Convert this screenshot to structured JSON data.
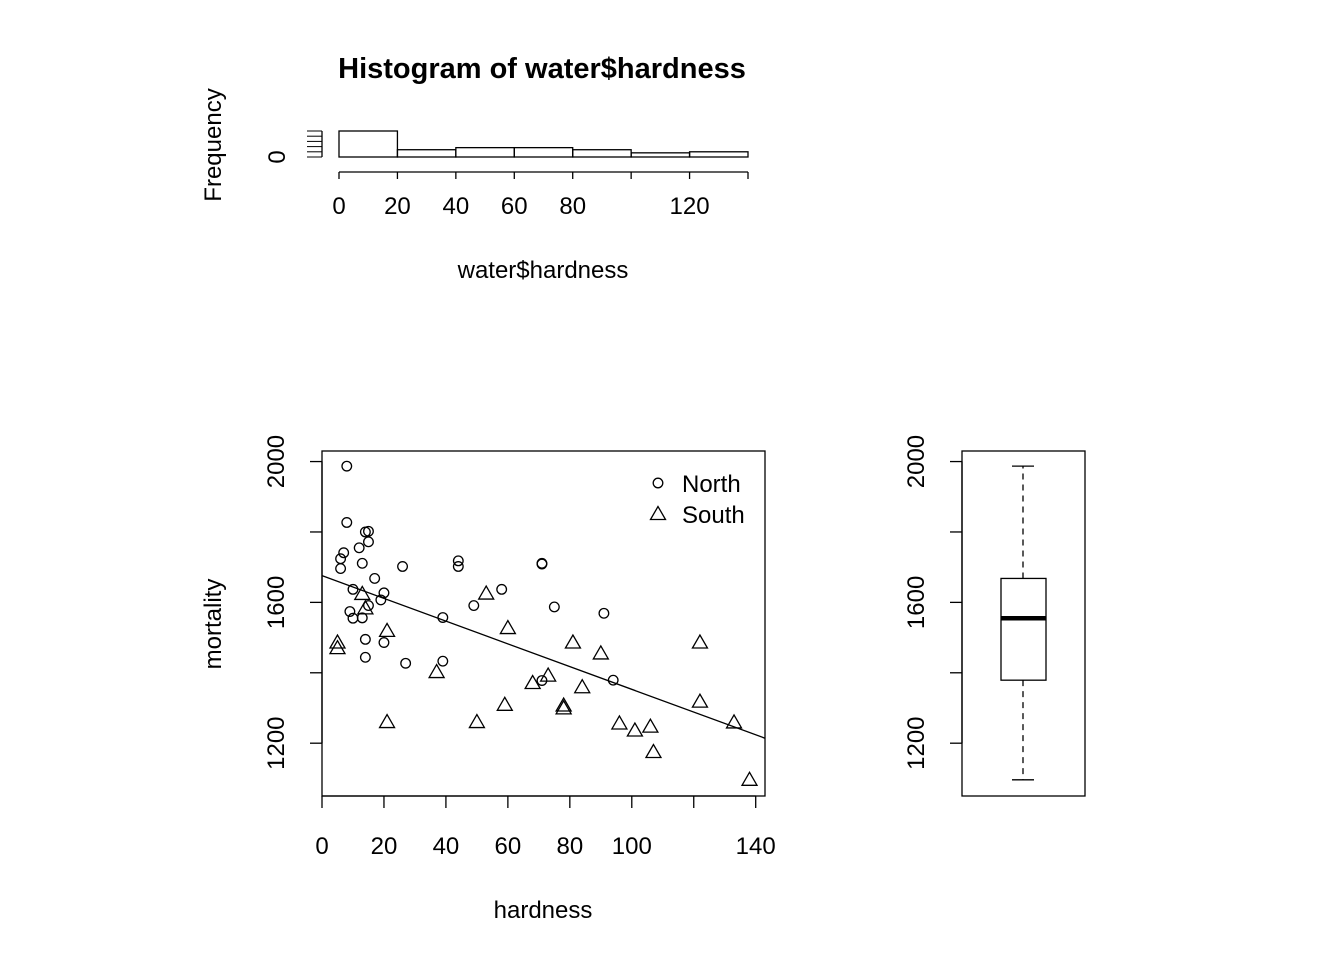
{
  "chart_data": [
    {
      "type": "bar",
      "title": "Histogram of water$hardness",
      "xlabel": "water$hardness",
      "ylabel": "Frequency",
      "x_ticks": [
        "0",
        "20",
        "40",
        "60",
        "80",
        "120"
      ],
      "x_tick_values": [
        0,
        20,
        40,
        60,
        80,
        120
      ],
      "y_ticks": [
        "0"
      ],
      "bins": [
        [
          0,
          20
        ],
        [
          20,
          40
        ],
        [
          40,
          60
        ],
        [
          60,
          80
        ],
        [
          80,
          100
        ],
        [
          100,
          120
        ],
        [
          120,
          140
        ]
      ],
      "values": [
        25,
        7,
        9,
        9,
        7,
        4,
        5
      ],
      "xlim": [
        0,
        140
      ],
      "ylim": [
        0,
        25
      ]
    },
    {
      "type": "scatter",
      "xlabel": "hardness",
      "ylabel": "mortality",
      "x_ticks": [
        "0",
        "20",
        "40",
        "60",
        "80",
        "100",
        "140"
      ],
      "x_tick_values": [
        0,
        20,
        40,
        60,
        80,
        100,
        140
      ],
      "y_ticks": [
        "1200",
        "1600",
        "2000"
      ],
      "y_tick_values": [
        1200,
        1600,
        2000
      ],
      "xlim": [
        0,
        143
      ],
      "ylim": [
        1050,
        2030
      ],
      "legend": {
        "position": "top-right",
        "entries": [
          {
            "label": "North",
            "shape": "circle"
          },
          {
            "label": "South",
            "shape": "triangle"
          }
        ]
      },
      "series": [
        {
          "name": "North",
          "shape": "circle",
          "points": [
            [
              8,
              1987
            ],
            [
              8,
              1827
            ],
            [
              7,
              1741
            ],
            [
              6,
              1724
            ],
            [
              6,
              1696
            ],
            [
              12,
              1755
            ],
            [
              14,
              1800
            ],
            [
              15,
              1772
            ],
            [
              15,
              1802
            ],
            [
              13,
              1711
            ],
            [
              17,
              1668
            ],
            [
              10,
              1637
            ],
            [
              9,
              1574
            ],
            [
              10,
              1555
            ],
            [
              13,
              1556
            ],
            [
              15,
              1591
            ],
            [
              19,
              1607
            ],
            [
              20,
              1627
            ],
            [
              14,
              1495
            ],
            [
              14,
              1444
            ],
            [
              20,
              1486
            ],
            [
              26,
              1702
            ],
            [
              27,
              1427
            ],
            [
              39,
              1557
            ],
            [
              39,
              1433
            ],
            [
              44,
              1718
            ],
            [
              44,
              1702
            ],
            [
              49,
              1591
            ],
            [
              58,
              1637
            ],
            [
              71,
              1709
            ],
            [
              71,
              1711
            ],
            [
              71,
              1378
            ],
            [
              75,
              1587
            ],
            [
              91,
              1569
            ],
            [
              94,
              1379
            ]
          ]
        },
        {
          "name": "South",
          "shape": "triangle",
          "points": [
            [
              5,
              1486
            ],
            [
              5,
              1470
            ],
            [
              13,
              1624
            ],
            [
              14,
              1583
            ],
            [
              21,
              1519
            ],
            [
              21,
              1260
            ],
            [
              37,
              1402
            ],
            [
              50,
              1260
            ],
            [
              53,
              1625
            ],
            [
              59,
              1309
            ],
            [
              60,
              1527
            ],
            [
              68,
              1371
            ],
            [
              73,
              1392
            ],
            [
              78,
              1307
            ],
            [
              78,
              1299
            ],
            [
              81,
              1486
            ],
            [
              84,
              1359
            ],
            [
              90,
              1455
            ],
            [
              96,
              1256
            ],
            [
              101,
              1236
            ],
            [
              106,
              1247
            ],
            [
              107,
              1175
            ],
            [
              122,
              1486
            ],
            [
              122,
              1318
            ],
            [
              133,
              1259
            ],
            [
              138,
              1096
            ]
          ]
        }
      ],
      "fit_line": {
        "intercept": 1676,
        "slope": -3.23
      }
    },
    {
      "type": "box",
      "y_ticks": [
        "1200",
        "1600",
        "2000"
      ],
      "y_tick_values": [
        1200,
        1600,
        2000
      ],
      "ylim": [
        1050,
        2030
      ],
      "whisker_low": 1096,
      "q1": 1379,
      "median": 1555,
      "q3": 1668,
      "whisker_high": 1987
    }
  ]
}
